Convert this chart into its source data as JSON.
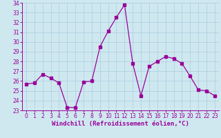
{
  "x": [
    0,
    1,
    2,
    3,
    4,
    5,
    6,
    7,
    8,
    9,
    10,
    11,
    12,
    13,
    14,
    15,
    16,
    17,
    18,
    19,
    20,
    21,
    22,
    23
  ],
  "y": [
    25.7,
    25.8,
    26.7,
    26.3,
    25.8,
    23.3,
    23.3,
    25.9,
    26.0,
    29.5,
    31.1,
    32.5,
    33.8,
    27.8,
    24.5,
    27.5,
    28.0,
    28.5,
    28.3,
    27.8,
    26.5,
    25.1,
    25.0,
    24.5
  ],
  "line_color": "#990099",
  "marker": "s",
  "marker_size": 2.5,
  "bg_color": "#cfe8f0",
  "grid_color": "#aaccdd",
  "ylim": [
    23,
    34
  ],
  "yticks": [
    23,
    24,
    25,
    26,
    27,
    28,
    29,
    30,
    31,
    32,
    33,
    34
  ],
  "xticks": [
    0,
    1,
    2,
    3,
    4,
    5,
    6,
    7,
    8,
    9,
    10,
    11,
    12,
    13,
    14,
    15,
    16,
    17,
    18,
    19,
    20,
    21,
    22,
    23
  ],
  "tick_color": "#990099",
  "tick_fontsize": 5.5,
  "xlabel": "Windchill (Refroidissement éolien,°C)",
  "xlabel_fontsize": 6.5,
  "axis_color": "#990099"
}
